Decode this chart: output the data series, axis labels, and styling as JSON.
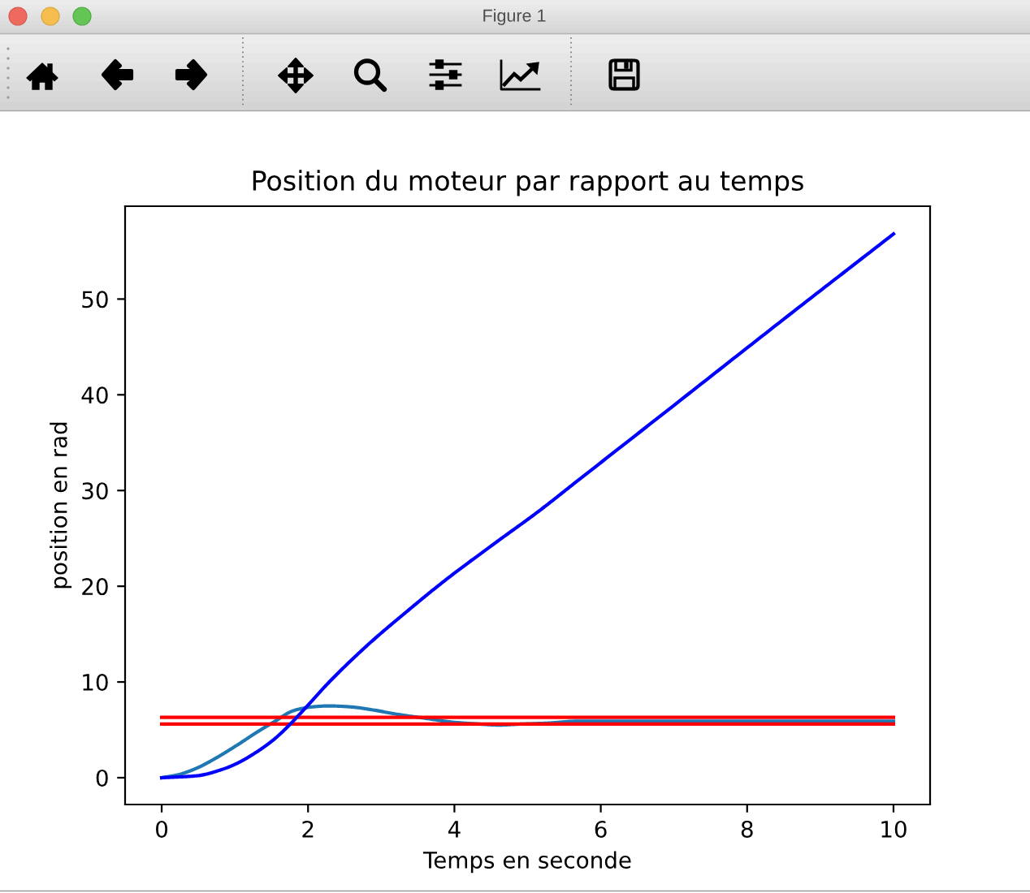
{
  "chart_data": {
    "type": "line",
    "title": "Position du moteur par rapport au temps",
    "xlabel": "Temps en seconde",
    "ylabel": "position en rad",
    "annotations": [
      "Figure 1"
    ],
    "xlim": [
      -0.5,
      10.5
    ],
    "ylim": [
      -2.8,
      59.7
    ],
    "xticks": [
      0,
      2,
      4,
      6,
      8,
      10
    ],
    "yticks": [
      0,
      10,
      20,
      30,
      40,
      50
    ],
    "grid": false,
    "series": [
      {
        "color": "#1f77b4",
        "x": [
          0,
          0.22,
          0.48,
          0.73,
          1.03,
          1.29,
          1.55,
          1.8,
          2.06,
          2.28,
          2.58,
          2.87,
          3.24,
          3.61,
          3.98,
          4.35,
          4.61,
          4.9,
          5.27,
          5.67,
          6.5,
          8,
          10
        ],
        "values": [
          0,
          0.3,
          1.0,
          2.0,
          3.4,
          4.7,
          5.9,
          7.0,
          7.4,
          7.5,
          7.4,
          7.1,
          6.6,
          6.2,
          5.8,
          5.6,
          5.5,
          5.6,
          5.7,
          5.9,
          5.9,
          5.9,
          5.9
        ]
      },
      {
        "color": "#ff0000",
        "x": [
          0,
          10
        ],
        "values": [
          6.3,
          6.3
        ]
      },
      {
        "color": "#ff0000",
        "x": [
          0,
          10
        ],
        "values": [
          5.6,
          5.6
        ]
      },
      {
        "color": "#0000ff",
        "x": [
          0,
          0.48,
          0.84,
          1.03,
          1.32,
          1.55,
          1.77,
          1.99,
          2.29,
          2.82,
          3.34,
          3.87,
          4.5,
          5.18,
          5.63,
          7,
          8.5,
          10
        ],
        "values": [
          0,
          0.2,
          0.9,
          1.5,
          2.8,
          4.1,
          5.7,
          7.5,
          10.0,
          13.9,
          17.3,
          20.6,
          24.2,
          28.0,
          30.7,
          38.9,
          47.9,
          56.8
        ]
      }
    ]
  }
}
